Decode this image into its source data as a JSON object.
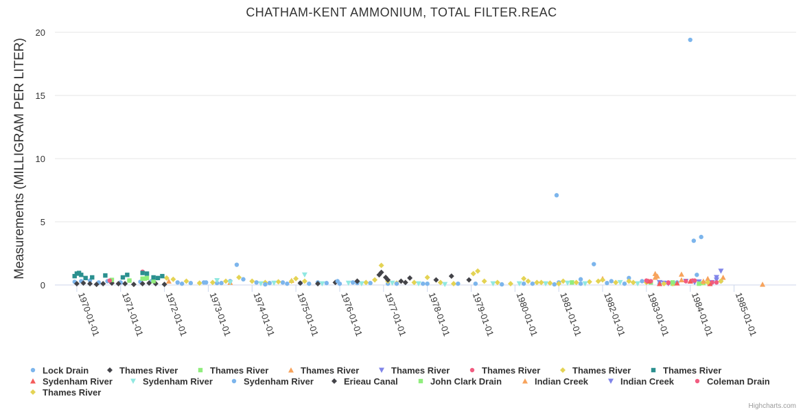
{
  "chart_data": {
    "type": "scatter",
    "title": "CHATHAM-KENT AMMONIUM, TOTAL FILTER.REAC",
    "xlabel": "",
    "ylabel": "Measurements (MILLIGRAM PER LITER)",
    "ylim": [
      0,
      20
    ],
    "yticks": [
      "0",
      "5",
      "10",
      "15",
      "20"
    ],
    "xlim": [
      "1969-07-01",
      "1986-06-01"
    ],
    "xticks": [
      {
        "date": "1970-01-01",
        "label": "1970-01-01"
      },
      {
        "date": "1971-01-01",
        "label": "1971-01-01"
      },
      {
        "date": "1972-01-01",
        "label": "1972-01-01"
      },
      {
        "date": "1973-01-01",
        "label": "1973-01-01"
      },
      {
        "date": "1974-01-01",
        "label": "1974-01-01"
      },
      {
        "date": "1975-01-01",
        "label": "1975-01-01"
      },
      {
        "date": "1976-01-01",
        "label": "1976-01-01"
      },
      {
        "date": "1977-01-01",
        "label": "1977-01-01"
      },
      {
        "date": "1978-01-01",
        "label": "1978-01-01"
      },
      {
        "date": "1979-01-01",
        "label": "1979-01-01"
      },
      {
        "date": "1980-01-01",
        "label": "1980-01-01"
      },
      {
        "date": "1981-01-01",
        "label": "1981-01-01"
      },
      {
        "date": "1982-01-01",
        "label": "1982-01-01"
      },
      {
        "date": "1983-01-01",
        "label": "1983-01-01"
      },
      {
        "date": "1984-01-01",
        "label": "1984-01-01"
      },
      {
        "date": "1985-01-01",
        "label": "1985-01-01"
      }
    ],
    "series": [
      {
        "name": "Lock Drain",
        "color": "#7cb5ec",
        "symbol": "circle",
        "points": [
          [
            1969.95,
            0.25
          ],
          [
            1970.1,
            0.3
          ],
          [
            1970.3,
            0.35
          ],
          [
            1970.5,
            0.2
          ],
          [
            1970.7,
            0.3
          ],
          [
            1971.0,
            0.2
          ],
          [
            1971.2,
            0.35
          ],
          [
            1971.45,
            0.25
          ],
          [
            1971.7,
            0.3
          ],
          [
            1972.3,
            0.2
          ],
          [
            1972.6,
            0.15
          ],
          [
            1972.9,
            0.2
          ],
          [
            1973.2,
            0.15
          ],
          [
            1973.5,
            0.3
          ],
          [
            1973.65,
            1.6
          ],
          [
            1973.8,
            0.45
          ],
          [
            1974.1,
            0.2
          ],
          [
            1974.4,
            0.15
          ],
          [
            1974.7,
            0.2
          ],
          [
            1975.1,
            0.15
          ],
          [
            1975.5,
            0.2
          ],
          [
            1976.0,
            0.1
          ],
          [
            1976.4,
            0.15
          ],
          [
            1977.1,
            0.1
          ],
          [
            1978.0,
            0.1
          ],
          [
            1979.1,
            0.1
          ],
          [
            1980.2,
            0.1
          ],
          [
            1980.95,
            7.1
          ],
          [
            1981.0,
            0.2
          ],
          [
            1981.5,
            0.45
          ],
          [
            1981.8,
            1.65
          ],
          [
            1982.2,
            0.3
          ],
          [
            1982.6,
            0.55
          ],
          [
            1982.9,
            0.3
          ],
          [
            1983.3,
            0.1
          ],
          [
            1983.7,
            0.2
          ],
          [
            1984.0,
            19.4
          ],
          [
            1984.08,
            3.5
          ],
          [
            1984.15,
            0.8
          ],
          [
            1984.25,
            3.8
          ],
          [
            1984.5,
            0.2
          ],
          [
            1984.7,
            0.3
          ]
        ]
      },
      {
        "name": "Thames River",
        "color": "#434348",
        "symbol": "diamond",
        "points": [
          [
            1970.0,
            0.1
          ],
          [
            1970.15,
            0.15
          ],
          [
            1970.3,
            0.1
          ],
          [
            1970.45,
            0.05
          ],
          [
            1970.6,
            0.1
          ],
          [
            1970.8,
            0.15
          ],
          [
            1970.95,
            0.1
          ],
          [
            1971.1,
            0.1
          ],
          [
            1971.3,
            0.05
          ],
          [
            1971.5,
            0.1
          ],
          [
            1971.65,
            0.15
          ],
          [
            1971.8,
            0.1
          ],
          [
            1972.0,
            0.05
          ],
          [
            1975.1,
            0.15
          ],
          [
            1975.5,
            0.1
          ],
          [
            1975.9,
            0.2
          ],
          [
            1976.4,
            0.3
          ],
          [
            1976.9,
            0.8
          ],
          [
            1976.95,
            1.0
          ],
          [
            1977.05,
            0.6
          ],
          [
            1977.4,
            0.3
          ],
          [
            1977.6,
            0.55
          ],
          [
            1978.2,
            0.4
          ],
          [
            1978.55,
            0.7
          ],
          [
            1978.95,
            0.4
          ]
        ]
      },
      {
        "name": "Thames River",
        "color": "#90ed7d",
        "symbol": "square",
        "points": [
          [
            1970.8,
            0.4
          ],
          [
            1971.2,
            0.35
          ],
          [
            1971.5,
            0.5
          ],
          [
            1971.6,
            0.55
          ],
          [
            1971.75,
            0.3
          ],
          [
            1981.3,
            0.2
          ],
          [
            1983.1,
            0.2
          ],
          [
            1983.6,
            0.1
          ],
          [
            1984.3,
            0.15
          ]
        ]
      },
      {
        "name": "Thames River",
        "color": "#f7a35c",
        "symbol": "triangle",
        "points": [
          [
            1972.1,
            0.3
          ],
          [
            1973.5,
            0.2
          ],
          [
            1974.9,
            0.35
          ],
          [
            1982.0,
            0.5
          ],
          [
            1983.2,
            0.9
          ],
          [
            1983.25,
            0.7
          ],
          [
            1983.8,
            0.85
          ],
          [
            1984.0,
            0.3
          ],
          [
            1984.4,
            0.5
          ],
          [
            1984.75,
            0.6
          ],
          [
            1985.65,
            0.05
          ]
        ]
      },
      {
        "name": "Thames River",
        "color": "#8085e9",
        "symbol": "triangle-down",
        "points": [
          [
            1983.3,
            0.2
          ],
          [
            1983.5,
            0.1
          ],
          [
            1983.9,
            0.3
          ],
          [
            1984.2,
            0.25
          ],
          [
            1984.5,
            0.2
          ],
          [
            1984.6,
            0.6
          ],
          [
            1984.7,
            1.1
          ]
        ]
      },
      {
        "name": "Thames River",
        "color": "#f15c80",
        "symbol": "circle",
        "points": [
          [
            1970.75,
            0.35
          ],
          [
            1971.5,
            1.05
          ],
          [
            1983.1,
            0.3
          ],
          [
            1983.5,
            0.2
          ],
          [
            1983.9,
            0.3
          ],
          [
            1984.05,
            0.35
          ],
          [
            1984.5,
            0.2
          ]
        ]
      },
      {
        "name": "Thames River",
        "color": "#e4d354",
        "symbol": "diamond",
        "points": [
          [
            1972.05,
            0.55
          ],
          [
            1972.2,
            0.45
          ],
          [
            1972.5,
            0.3
          ],
          [
            1972.8,
            0.15
          ],
          [
            1973.1,
            0.2
          ],
          [
            1973.4,
            0.3
          ],
          [
            1973.7,
            0.6
          ],
          [
            1974.0,
            0.3
          ],
          [
            1974.3,
            0.2
          ],
          [
            1974.6,
            0.25
          ],
          [
            1974.9,
            0.3
          ],
          [
            1975.0,
            0.5
          ],
          [
            1975.2,
            0.3
          ],
          [
            1976.6,
            0.2
          ],
          [
            1976.8,
            0.4
          ],
          [
            1976.95,
            1.55
          ],
          [
            1977.1,
            0.3
          ],
          [
            1977.3,
            0.15
          ],
          [
            1977.7,
            0.2
          ],
          [
            1978.0,
            0.6
          ],
          [
            1978.3,
            0.2
          ],
          [
            1978.6,
            0.1
          ],
          [
            1979.05,
            0.9
          ],
          [
            1979.15,
            1.1
          ],
          [
            1979.3,
            0.3
          ],
          [
            1979.6,
            0.2
          ],
          [
            1979.9,
            0.1
          ],
          [
            1980.2,
            0.5
          ],
          [
            1980.5,
            0.2
          ],
          [
            1980.8,
            0.15
          ],
          [
            1981.1,
            0.3
          ],
          [
            1981.4,
            0.2
          ],
          [
            1981.7,
            0.25
          ],
          [
            1982.0,
            0.4
          ],
          [
            1982.3,
            0.2
          ],
          [
            1982.6,
            0.3
          ],
          [
            1983.0,
            0.2
          ],
          [
            1983.6,
            0.1
          ],
          [
            1984.3,
            0.2
          ],
          [
            1984.7,
            0.3
          ]
        ]
      },
      {
        "name": "Thames River",
        "color": "#2b908f",
        "symbol": "square",
        "points": [
          [
            1969.95,
            0.7
          ],
          [
            1970.0,
            0.9
          ],
          [
            1970.05,
            0.95
          ],
          [
            1970.1,
            0.8
          ],
          [
            1970.2,
            0.55
          ],
          [
            1970.35,
            0.6
          ],
          [
            1970.65,
            0.75
          ],
          [
            1971.05,
            0.6
          ],
          [
            1971.15,
            0.8
          ],
          [
            1971.5,
            0.95
          ],
          [
            1971.6,
            0.9
          ],
          [
            1971.75,
            0.6
          ],
          [
            1971.85,
            0.55
          ],
          [
            1971.95,
            0.7
          ]
        ]
      },
      {
        "name": "Sydenham River",
        "color": "#f45b5b",
        "symbol": "triangle",
        "points": [
          [
            1983.05,
            0.3
          ],
          [
            1983.3,
            0.1
          ],
          [
            1983.7,
            0.15
          ],
          [
            1984.0,
            0.3
          ],
          [
            1984.45,
            0.1
          ]
        ]
      },
      {
        "name": "Sydenham River",
        "color": "#91e8e1",
        "symbol": "triangle-down",
        "points": [
          [
            1973.2,
            0.35
          ],
          [
            1973.5,
            0.2
          ],
          [
            1974.2,
            0.1
          ],
          [
            1974.5,
            0.15
          ],
          [
            1975.2,
            0.8
          ],
          [
            1975.6,
            0.1
          ],
          [
            1976.2,
            0.15
          ],
          [
            1976.5,
            0.1
          ],
          [
            1977.2,
            0.15
          ],
          [
            1977.8,
            0.1
          ],
          [
            1978.4,
            0.05
          ],
          [
            1979.5,
            0.1
          ],
          [
            1980.1,
            0.1
          ],
          [
            1980.7,
            0.1
          ],
          [
            1981.2,
            0.15
          ],
          [
            1981.6,
            0.1
          ],
          [
            1982.4,
            0.2
          ],
          [
            1982.8,
            0.1
          ]
        ]
      },
      {
        "name": "Sydenham River",
        "color": "#7cb5ec",
        "symbol": "circle",
        "points": [
          [
            1972.4,
            0.1
          ],
          [
            1972.95,
            0.2
          ],
          [
            1973.3,
            0.15
          ],
          [
            1974.3,
            0.05
          ],
          [
            1974.8,
            0.1
          ],
          [
            1975.3,
            0.1
          ],
          [
            1975.7,
            0.15
          ],
          [
            1975.95,
            0.3
          ],
          [
            1976.3,
            0.2
          ],
          [
            1976.7,
            0.15
          ],
          [
            1977.3,
            0.1
          ],
          [
            1977.9,
            0.1
          ],
          [
            1978.7,
            0.1
          ],
          [
            1979.7,
            0.05
          ],
          [
            1980.4,
            0.1
          ],
          [
            1980.9,
            0.05
          ],
          [
            1981.5,
            0.1
          ],
          [
            1982.1,
            0.15
          ],
          [
            1982.5,
            0.1
          ]
        ]
      },
      {
        "name": "Erieau Canal",
        "color": "#434348",
        "symbol": "diamond",
        "points": [
          [
            1976.4,
            0.3
          ],
          [
            1977.1,
            0.4
          ],
          [
            1977.5,
            0.2
          ]
        ]
      },
      {
        "name": "John Clark Drain",
        "color": "#90ed7d",
        "symbol": "square",
        "points": [
          [
            1971.55,
            0.5
          ],
          [
            1983.6,
            0.2
          ],
          [
            1984.2,
            0.1
          ]
        ]
      },
      {
        "name": "Indian Creek",
        "color": "#f7a35c",
        "symbol": "triangle",
        "points": [
          [
            1983.2,
            0.6
          ],
          [
            1983.8,
            0.4
          ],
          [
            1984.3,
            0.3
          ]
        ]
      },
      {
        "name": "Indian Creek",
        "color": "#8085e9",
        "symbol": "triangle-down",
        "points": [
          [
            1983.4,
            0.15
          ],
          [
            1984.1,
            0.2
          ],
          [
            1984.6,
            0.4
          ]
        ]
      },
      {
        "name": "Coleman Drain",
        "color": "#f15c80",
        "symbol": "circle",
        "points": [
          [
            1983.0,
            0.35
          ],
          [
            1983.5,
            0.15
          ],
          [
            1984.1,
            0.35
          ],
          [
            1984.6,
            0.2
          ]
        ]
      },
      {
        "name": "Thames River",
        "color": "#e4d354",
        "symbol": "diamond",
        "points": [
          [
            1980.3,
            0.3
          ],
          [
            1980.6,
            0.2
          ],
          [
            1981.0,
            0.1
          ],
          [
            1981.9,
            0.3
          ],
          [
            1982.7,
            0.2
          ],
          [
            1983.4,
            0.1
          ],
          [
            1984.4,
            0.2
          ]
        ]
      }
    ]
  },
  "credits": "Highcharts.com"
}
